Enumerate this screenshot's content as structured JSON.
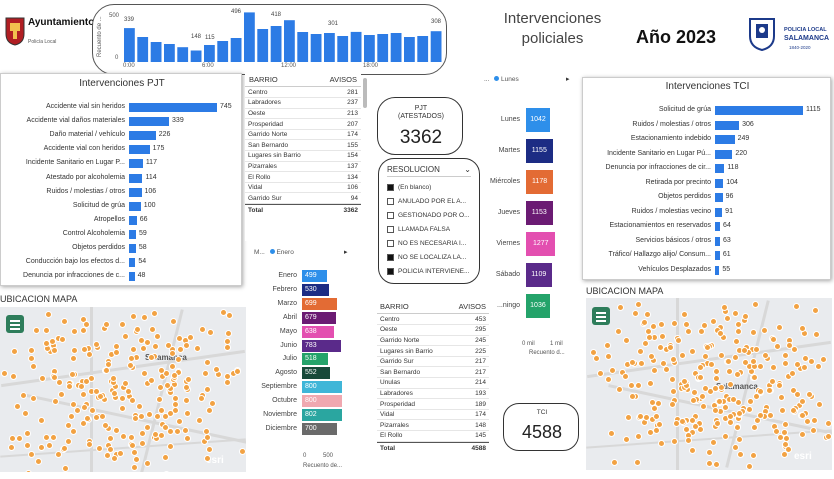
{
  "header": {
    "org_name": "Ayuntamiento de Salamanca",
    "org_sub": "Policía Local",
    "title": "Intervenciones policiales",
    "year_label": "Año 2023",
    "brand_line1": "POLICIA LOCAL",
    "brand_line2": "SALAMANCA",
    "brand_line3": "1840-2020"
  },
  "hourly": {
    "ylabel": "Recuento de ...",
    "yticks": [
      "500",
      "0"
    ],
    "xticks": [
      "0:00",
      "6:00",
      "12:00",
      "18:00"
    ],
    "labels": [
      "339",
      "148",
      "115",
      "496",
      "418",
      "301",
      "308"
    ]
  },
  "pjt": {
    "title": "Intervenciones PJT",
    "rows": [
      {
        "label": "Accidente vial sin heridos",
        "value": "745"
      },
      {
        "label": "Accidente vial daños materiales",
        "value": "339"
      },
      {
        "label": "Daño material / vehículo",
        "value": "226"
      },
      {
        "label": "Accidente vial con heridos",
        "value": "175"
      },
      {
        "label": "Incidente Sanitario en Lugar P...",
        "value": "117"
      },
      {
        "label": "Atestado por alcoholemia",
        "value": "114"
      },
      {
        "label": "Ruidos / molestias / otros",
        "value": "106"
      },
      {
        "label": "Solicitud de grúa",
        "value": "100"
      },
      {
        "label": "Atropellos",
        "value": "66"
      },
      {
        "label": "Control Alcoholemia",
        "value": "59"
      },
      {
        "label": "Objetos perdidos",
        "value": "58"
      },
      {
        "label": "Conducción bajo los efectos d...",
        "value": "54"
      },
      {
        "label": "Denuncia por infracciones de c...",
        "value": "48"
      }
    ]
  },
  "barrio1": {
    "col1": "BARRIO",
    "col2": "AVISOS",
    "rows": [
      {
        "name": "Centro",
        "value": "281"
      },
      {
        "name": "Labradores",
        "value": "237"
      },
      {
        "name": "Oeste",
        "value": "213"
      },
      {
        "name": "Prosperidad",
        "value": "207"
      },
      {
        "name": "Garrido Norte",
        "value": "174"
      },
      {
        "name": "San Bernardo",
        "value": "155"
      },
      {
        "name": "Lugares sin Barrio",
        "value": "154"
      },
      {
        "name": "Pizarrales",
        "value": "137"
      },
      {
        "name": "El Rollo",
        "value": "134"
      },
      {
        "name": "Vidal",
        "value": "106"
      },
      {
        "name": "Garrido Sur",
        "value": "94"
      }
    ],
    "total_label": "Total",
    "total_value": "3362"
  },
  "pjt_card": {
    "title": "PJT (ATESTADOS)",
    "value": "3362"
  },
  "tci_card": {
    "title": "TCI",
    "value": "4588"
  },
  "resolucion": {
    "title": "RESOLUCION",
    "rows": [
      {
        "label": "(En blanco)",
        "checked": true
      },
      {
        "label": "ANULADO POR EL A...",
        "checked": false
      },
      {
        "label": "GESTIONADO POR O...",
        "checked": false
      },
      {
        "label": "LLAMADA FALSA",
        "checked": false
      },
      {
        "label": "NO ES NECESARIA I...",
        "checked": false
      },
      {
        "label": "NO SE LOCALIZA LA...",
        "checked": true
      },
      {
        "label": "POLICIA INTERVIENE...",
        "checked": true
      }
    ]
  },
  "days": {
    "legend_title": "...",
    "legend_item": "Lunes",
    "x_ticks": [
      "0 mil",
      "1 mil"
    ],
    "x_label": "Recuento d...",
    "rows": [
      {
        "day": "Lunes",
        "value": "1042",
        "color": "#2e8fea"
      },
      {
        "day": "Martes",
        "value": "1155",
        "color": "#1c2c84"
      },
      {
        "day": "Miércoles",
        "value": "1178",
        "color": "#e36b34"
      },
      {
        "day": "Jueves",
        "value": "1153",
        "color": "#6b1b73"
      },
      {
        "day": "Viernes",
        "value": "1277",
        "color": "#e34fb0"
      },
      {
        "day": "Sábado",
        "value": "1109",
        "color": "#5a2a8a"
      },
      {
        "day": "...ningo",
        "value": "1036",
        "color": "#24a36a"
      }
    ]
  },
  "months": {
    "legend_title": "M...",
    "legend_item": "Enero",
    "x_ticks": [
      "0",
      "500"
    ],
    "x_label": "Recuento de...",
    "rows": [
      {
        "month": "Enero",
        "value": "499",
        "color": "#2e8fea"
      },
      {
        "month": "Febrero",
        "value": "530",
        "color": "#1c2c84"
      },
      {
        "month": "Marzo",
        "value": "699",
        "color": "#e36b34"
      },
      {
        "month": "Abril",
        "value": "679",
        "color": "#6b1b73"
      },
      {
        "month": "Mayo",
        "value": "638",
        "color": "#e34fb0"
      },
      {
        "month": "Junio",
        "value": "783",
        "color": "#5a2a8a"
      },
      {
        "month": "Julio",
        "value": "518",
        "color": "#24a36a"
      },
      {
        "month": "Agosto",
        "value": "552",
        "color": "#174a3a"
      },
      {
        "month": "Septiembre",
        "value": "800",
        "color": "#3fb6d8"
      },
      {
        "month": "Octubre",
        "value": "800",
        "color": "#f0a8b0"
      },
      {
        "month": "Noviembre",
        "value": "802",
        "color": "#2aa6a0"
      },
      {
        "month": "Diciembre",
        "value": "700",
        "color": "#6a6a6a"
      }
    ]
  },
  "barrio2": {
    "col1": "BARRIO",
    "col2": "AVISOS",
    "rows": [
      {
        "name": "Centro",
        "value": "453"
      },
      {
        "name": "Oeste",
        "value": "295"
      },
      {
        "name": "Garrido Norte",
        "value": "245"
      },
      {
        "name": "Lugares sin Barrio",
        "value": "225"
      },
      {
        "name": "Garrido Sur",
        "value": "217"
      },
      {
        "name": "San Bernardo",
        "value": "217"
      },
      {
        "name": "Unulas",
        "value": "214"
      },
      {
        "name": "Labradores",
        "value": "193"
      },
      {
        "name": "Prosperidad",
        "value": "189"
      },
      {
        "name": "Vidal",
        "value": "174"
      },
      {
        "name": "Pizarrales",
        "value": "148"
      },
      {
        "name": "El Rollo",
        "value": "145"
      }
    ],
    "total_label": "Total",
    "total_value": "4588"
  },
  "tci": {
    "title": "Intervenciones TCI",
    "rows": [
      {
        "label": "Solicitud de grúa",
        "value": "1115"
      },
      {
        "label": "Ruidos / molestias / otros",
        "value": "306"
      },
      {
        "label": "Estacionamiento indebido",
        "value": "249"
      },
      {
        "label": "Incidente Sanitario en Lugar Pú...",
        "value": "220"
      },
      {
        "label": "Denuncia por infracciones de cir...",
        "value": "118"
      },
      {
        "label": "Retirada por precinto",
        "value": "104"
      },
      {
        "label": "Objetos perdidos",
        "value": "96"
      },
      {
        "label": "Ruidos / molestias vecino",
        "value": "91"
      },
      {
        "label": "Estacionamientos en reservados",
        "value": "64"
      },
      {
        "label": "Servicios básicos / otros",
        "value": "63"
      },
      {
        "label": "Tráfico/ Hallazgo alijo/ Consum...",
        "value": "61"
      },
      {
        "label": "Vehículos Desplazados",
        "value": "55"
      }
    ]
  },
  "map_left": {
    "title": "UBICACION MAPA",
    "city": "Salamanca",
    "credit": "esri"
  },
  "map_right": {
    "title": "UBICACION MAPA",
    "city": "Salamanca",
    "credit": "esri"
  }
}
